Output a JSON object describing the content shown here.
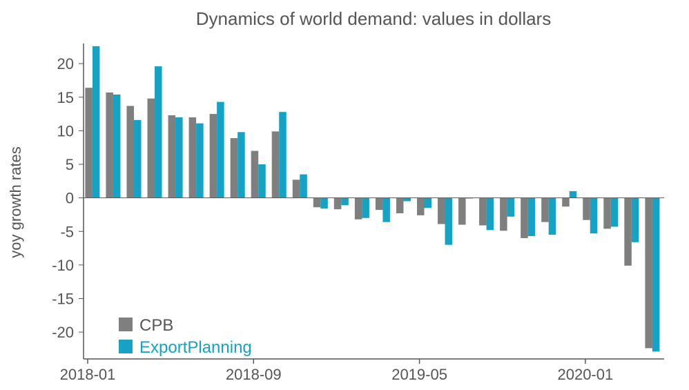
{
  "chart_data": {
    "type": "bar",
    "title": "Dynamics of world demand: values in dollars",
    "xlabel": "",
    "ylabel": "yoy growth rates",
    "ylim": [
      -24,
      23
    ],
    "yticks": [
      20,
      15,
      10,
      5,
      0,
      -5,
      -10,
      -15,
      -20
    ],
    "ytick_labels": [
      "20",
      "15",
      "10",
      "5",
      "0",
      "-5",
      "-10",
      "-15",
      "-20"
    ],
    "xtick_labels": [
      {
        "label": "2018-01",
        "index": 0
      },
      {
        "label": "2018-09",
        "index": 8
      },
      {
        "label": "2019-05",
        "index": 16
      },
      {
        "label": "2020-01",
        "index": 24
      }
    ],
    "categories": [
      "2018-01",
      "2018-02",
      "2018-03",
      "2018-04",
      "2018-05",
      "2018-06",
      "2018-07",
      "2018-08",
      "2018-09",
      "2018-10",
      "2018-11",
      "2018-12",
      "2019-01",
      "2019-02",
      "2019-03",
      "2019-04",
      "2019-05",
      "2019-06",
      "2019-07",
      "2019-08",
      "2019-09",
      "2019-10",
      "2019-11",
      "2019-12",
      "2020-01",
      "2020-02",
      "2020-03",
      "2020-04"
    ],
    "series": [
      {
        "name": "CPB",
        "color": "#7f7f7f",
        "values": [
          16.4,
          15.7,
          13.7,
          14.8,
          12.3,
          12.0,
          12.5,
          8.9,
          7.0,
          9.9,
          2.7,
          -1.4,
          -1.7,
          -3.2,
          -1.8,
          -2.3,
          -2.6,
          -3.9,
          -4.0,
          -4.1,
          -4.9,
          -6.0,
          -3.6,
          -1.3,
          -3.3,
          -4.6,
          -10.1,
          -22.4
        ]
      },
      {
        "name": "ExportPlanning",
        "color": "#17a2c4",
        "values": [
          22.6,
          15.4,
          11.6,
          19.6,
          12.0,
          11.1,
          14.3,
          9.8,
          5.0,
          12.8,
          3.5,
          -1.6,
          -1.1,
          -3.0,
          -3.6,
          -0.5,
          -1.5,
          -7.0,
          -0.1,
          -4.8,
          -2.8,
          -5.7,
          -5.5,
          1.0,
          -5.3,
          -4.3,
          -6.6,
          -22.9
        ]
      }
    ],
    "legend_position": "bottom-left",
    "grid": false
  },
  "colors": {
    "axis": "#555555",
    "cpb": "#7f7f7f",
    "exportplanning": "#17a2c4"
  }
}
